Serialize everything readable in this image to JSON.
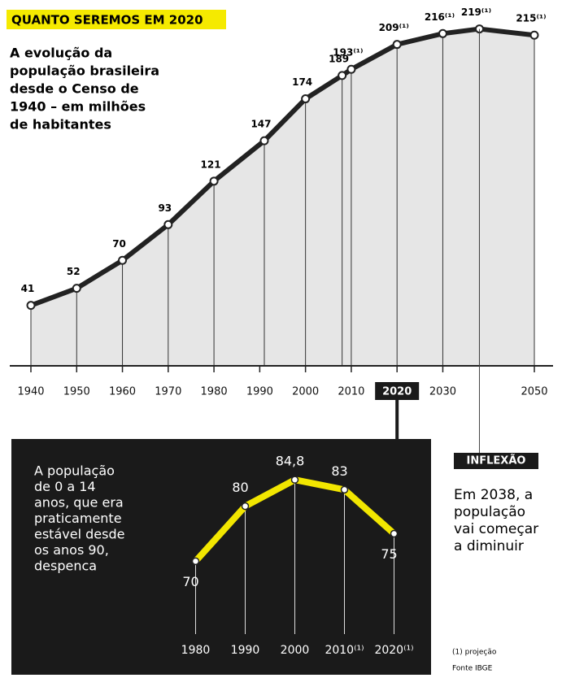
{
  "chart_data": [
    {
      "type": "line",
      "title": "QUANTO SEREMOS EM 2020",
      "subtitle": [
        "A evolução da",
        "população brasileira",
        "desde o Censo de",
        "1940 – em milhões",
        "de habitantes"
      ],
      "x": [
        1940,
        1950,
        1960,
        1970,
        1980,
        1991,
        2000,
        2008,
        2010,
        2020,
        2030,
        2038,
        2050
      ],
      "values": [
        41,
        52,
        70,
        93,
        121,
        147,
        174,
        189,
        193,
        209,
        216,
        219,
        215
      ],
      "value_labels": [
        "41",
        "52",
        "70",
        "93",
        "121",
        "147",
        "174",
        "189",
        "193⁽¹⁾",
        "209⁽¹⁾",
        "216⁽¹⁾",
        "219⁽¹⁾",
        "215⁽¹⁾"
      ],
      "xlim": [
        1940,
        2050
      ],
      "xticks": [
        1940,
        1950,
        1960,
        1970,
        1980,
        1990,
        2000,
        2010,
        2020,
        2030,
        2050
      ],
      "ylim": [
        0,
        235
      ],
      "color": "#222222",
      "highlight": 2020,
      "annotation_title": "INFLEXÃO",
      "annotation": [
        "Em 2038, a",
        "população",
        "vai começar",
        "a diminuir"
      ],
      "notes": [
        "(1) projeção",
        "Fonte IBGE"
      ]
    },
    {
      "type": "line",
      "annotation": [
        "A população",
        "de 0 a 14",
        "anos, que era",
        "praticamente",
        "estável desde",
        "os anos 90,",
        "despenca"
      ],
      "categories": [
        "1980",
        "1990",
        "2000",
        "2010⁽¹⁾",
        "2020⁽¹⁾"
      ],
      "values": [
        70,
        80,
        84.8,
        83,
        75
      ],
      "value_labels": [
        "70",
        "80",
        "84,8",
        "83",
        "75"
      ],
      "ylim": [
        60,
        90
      ],
      "color": "#f2e600"
    }
  ]
}
